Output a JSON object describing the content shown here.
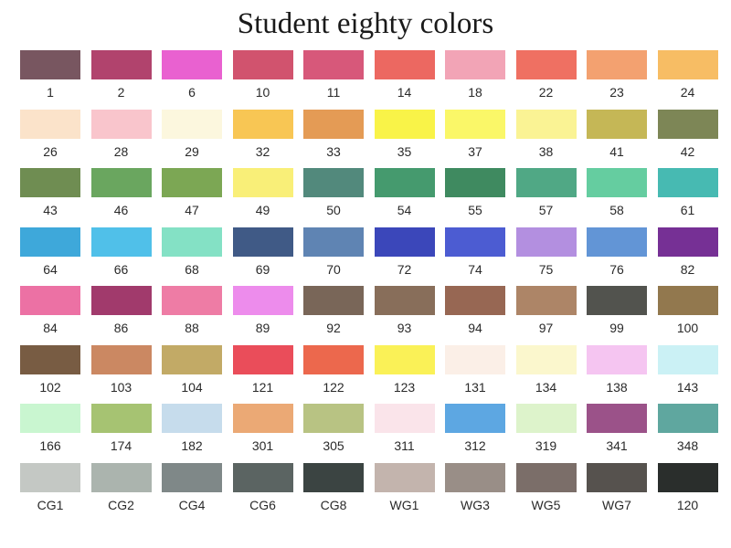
{
  "title": "Student eighty colors",
  "swatches": [
    {
      "label": "1",
      "color": "#7a5560"
    },
    {
      "label": "2",
      "color": "#b8416e"
    },
    {
      "label": "6",
      "color": "#f25ed6"
    },
    {
      "label": "10",
      "color": "#d9506e"
    },
    {
      "label": "11",
      "color": "#e0557a"
    },
    {
      "label": "14",
      "color": "#f5665e"
    },
    {
      "label": "18",
      "color": "#f7a2b6"
    },
    {
      "label": "22",
      "color": "#f86e5e"
    },
    {
      "label": "23",
      "color": "#f9a06a"
    },
    {
      "label": "24",
      "color": "#fbbd5c"
    },
    {
      "label": "26",
      "color": "#fde3c7"
    },
    {
      "label": "28",
      "color": "#fcc4cc"
    },
    {
      "label": "29",
      "color": "#fcf7dc"
    },
    {
      "label": "32",
      "color": "#fcc64a"
    },
    {
      "label": "33",
      "color": "#e99a4e"
    },
    {
      "label": "35",
      "color": "#fbf43a"
    },
    {
      "label": "37",
      "color": "#fbf85c"
    },
    {
      "label": "38",
      "color": "#fbf38c"
    },
    {
      "label": "41",
      "color": "#c7b74e"
    },
    {
      "label": "42",
      "color": "#7d8652"
    },
    {
      "label": "43",
      "color": "#6d8e4e"
    },
    {
      "label": "46",
      "color": "#66a85a"
    },
    {
      "label": "47",
      "color": "#7aa84e"
    },
    {
      "label": "49",
      "color": "#faf06e"
    },
    {
      "label": "50",
      "color": "#4e8a7c"
    },
    {
      "label": "54",
      "color": "#3f9c6c"
    },
    {
      "label": "55",
      "color": "#3a8c5e"
    },
    {
      "label": "57",
      "color": "#4aaa84"
    },
    {
      "label": "58",
      "color": "#5ecf9e"
    },
    {
      "label": "61",
      "color": "#3fbcb4"
    },
    {
      "label": "64",
      "color": "#36aae0"
    },
    {
      "label": "66",
      "color": "#48c2ee"
    },
    {
      "label": "68",
      "color": "#7ee3c4"
    },
    {
      "label": "69",
      "color": "#3e5a8a"
    },
    {
      "label": "70",
      "color": "#5c84b8"
    },
    {
      "label": "72",
      "color": "#3a46c4"
    },
    {
      "label": "74",
      "color": "#4a5cdc"
    },
    {
      "label": "75",
      "color": "#b58ee6"
    },
    {
      "label": "76",
      "color": "#5e96dc"
    },
    {
      "label": "82",
      "color": "#7a2e9c"
    },
    {
      "label": "84",
      "color": "#f46ea6"
    },
    {
      "label": "86",
      "color": "#a8386e"
    },
    {
      "label": "88",
      "color": "#f57aa6"
    },
    {
      "label": "89",
      "color": "#f38af2"
    },
    {
      "label": "92",
      "color": "#7a6656"
    },
    {
      "label": "93",
      "color": "#8a6e58"
    },
    {
      "label": "94",
      "color": "#9a6650"
    },
    {
      "label": "97",
      "color": "#b08464"
    },
    {
      "label": "99",
      "color": "#52534e"
    },
    {
      "label": "100",
      "color": "#94784a"
    },
    {
      "label": "102",
      "color": "#7a5c40"
    },
    {
      "label": "103",
      "color": "#d0875e"
    },
    {
      "label": "104",
      "color": "#c4aa60"
    },
    {
      "label": "121",
      "color": "#f54a58"
    },
    {
      "label": "122",
      "color": "#f56648"
    },
    {
      "label": "123",
      "color": "#fcf24a"
    },
    {
      "label": "131",
      "color": "#fcefe6"
    },
    {
      "label": "134",
      "color": "#fcf7ca"
    },
    {
      "label": "138",
      "color": "#f8c4f4"
    },
    {
      "label": "143",
      "color": "#c8f2f6"
    },
    {
      "label": "166",
      "color": "#c6f7ce"
    },
    {
      "label": "174",
      "color": "#a4c46c"
    },
    {
      "label": "182",
      "color": "#c4dcee"
    },
    {
      "label": "301",
      "color": "#f0a870"
    },
    {
      "label": "305",
      "color": "#b8c47e"
    },
    {
      "label": "311",
      "color": "#fbe4ea"
    },
    {
      "label": "312",
      "color": "#58a8e8"
    },
    {
      "label": "319",
      "color": "#dcf4c8"
    },
    {
      "label": "341",
      "color": "#a0508c"
    },
    {
      "label": "348",
      "color": "#5aa8a0"
    },
    {
      "label": "CG1",
      "color": "#c4c8c4"
    },
    {
      "label": "CG2",
      "color": "#aab4ae"
    },
    {
      "label": "CG4",
      "color": "#7e8888"
    },
    {
      "label": "CG6",
      "color": "#5a6462"
    },
    {
      "label": "CG8",
      "color": "#3a4442"
    },
    {
      "label": "WG1",
      "color": "#c4b4ac"
    },
    {
      "label": "WG3",
      "color": "#9a8e86"
    },
    {
      "label": "WG5",
      "color": "#7c6e68"
    },
    {
      "label": "WG7",
      "color": "#56524e"
    },
    {
      "label": "120",
      "color": "#2a2e2c"
    }
  ]
}
